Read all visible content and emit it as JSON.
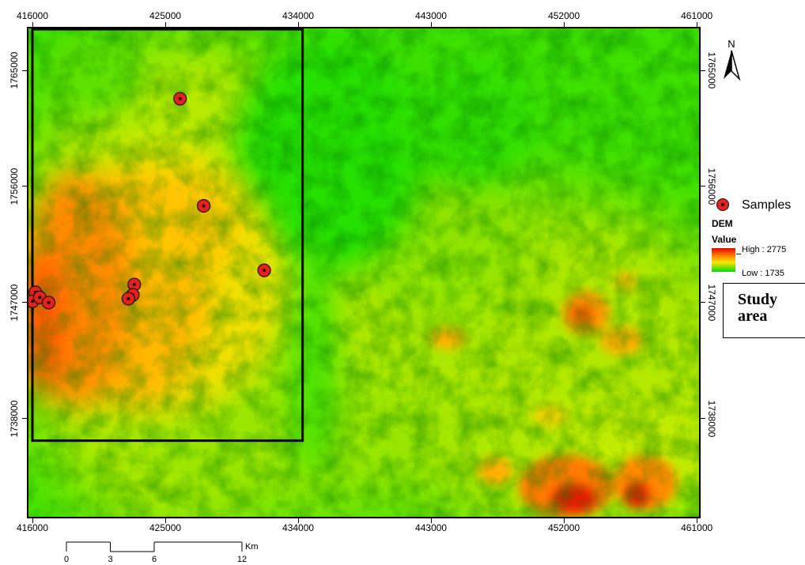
{
  "map": {
    "x_ticks": [
      "416000",
      "425000",
      "434000",
      "443000",
      "452000",
      "461000"
    ],
    "y_ticks": [
      "1765000",
      "1756000",
      "1747000",
      "1738000"
    ],
    "samples": [
      {
        "x": 426000,
        "y": 1762800
      },
      {
        "x": 427600,
        "y": 1754500
      },
      {
        "x": 431700,
        "y": 1749500
      },
      {
        "x": 416200,
        "y": 1747800
      },
      {
        "x": 416000,
        "y": 1747100
      },
      {
        "x": 416500,
        "y": 1747400
      },
      {
        "x": 417100,
        "y": 1747000
      },
      {
        "x": 422900,
        "y": 1748400
      },
      {
        "x": 422800,
        "y": 1747600
      },
      {
        "x": 422500,
        "y": 1747300
      }
    ],
    "study_area_extent": {
      "x_min": 416000,
      "x_max": 434300,
      "y_min": 1736300,
      "y_max": 1769700
    }
  },
  "legend": {
    "samples_label": "Samples",
    "dem_title": "DEM",
    "value_title": "Value",
    "high_label": "High : 2775",
    "low_label": "Low : 1735",
    "ramp_colors": [
      "#e60000",
      "#ff7a00",
      "#ffe600",
      "#7fe000",
      "#00e000"
    ]
  },
  "study_area": {
    "label": "Study area"
  },
  "north_arrow": {
    "label": "N"
  },
  "scale_bar": {
    "ticks": [
      "0",
      "3",
      "6",
      "12"
    ],
    "unit": "Km"
  },
  "colors": {
    "sample_fill": "#e8201a",
    "frame": "#000000"
  }
}
